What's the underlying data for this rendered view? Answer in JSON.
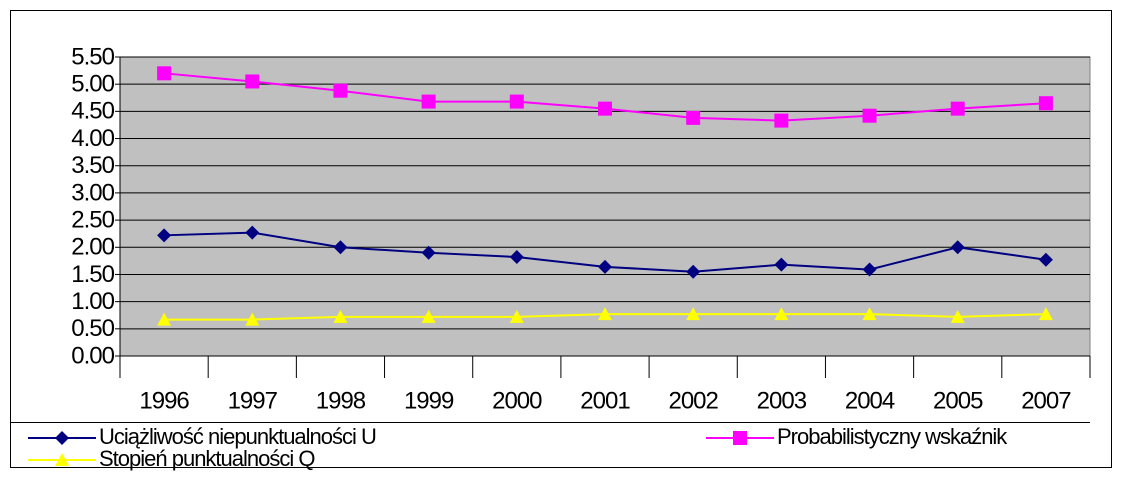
{
  "chart_data": {
    "type": "line",
    "categories": [
      "1996",
      "1997",
      "1998",
      "1999",
      "2000",
      "2001",
      "2002",
      "2003",
      "2004",
      "2005",
      "2007"
    ],
    "series": [
      {
        "name": "Uciążliwość niepunktualności U",
        "color": "#000080",
        "marker": "diamond",
        "values": [
          2.22,
          2.27,
          2.0,
          1.9,
          1.82,
          1.64,
          1.55,
          1.68,
          1.59,
          2.0,
          1.77
        ]
      },
      {
        "name": "Probabilistyczny wskaźnik",
        "color": "#ff00ff",
        "marker": "square",
        "values": [
          5.2,
          5.05,
          4.88,
          4.68,
          4.68,
          4.55,
          4.38,
          4.33,
          4.42,
          4.55,
          4.65
        ]
      },
      {
        "name": "Stopień punktualności Q",
        "color": "#ffff00",
        "marker": "triangle",
        "values": [
          0.67,
          0.67,
          0.72,
          0.72,
          0.72,
          0.77,
          0.77,
          0.77,
          0.77,
          0.72,
          0.77
        ]
      }
    ],
    "ylim": [
      0,
      5.5
    ],
    "yticks": [
      {
        "value": 0,
        "label": "0.00"
      },
      {
        "value": 0.5,
        "label": "0.50"
      },
      {
        "value": 1,
        "label": "1.00"
      },
      {
        "value": 1.5,
        "label": "1.50"
      },
      {
        "value": 2,
        "label": "2.00"
      },
      {
        "value": 2.5,
        "label": "2.50"
      },
      {
        "value": 3,
        "label": "3.00"
      },
      {
        "value": 3.5,
        "label": "3.50"
      },
      {
        "value": 4,
        "label": "4.00"
      },
      {
        "value": 4.5,
        "label": "4.50"
      },
      {
        "value": 5,
        "label": "5.00"
      },
      {
        "value": 5.5,
        "label": "5.50"
      }
    ],
    "grid": true,
    "plot_background": "#c0c0c0"
  }
}
